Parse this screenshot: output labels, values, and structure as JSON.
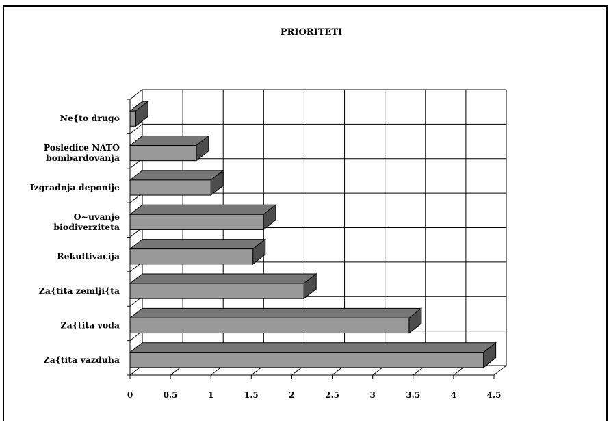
{
  "chart_data": {
    "type": "bar",
    "orientation": "horizontal",
    "style": "3d",
    "title": "PRIORITETI",
    "categories": [
      "Ne{to drugo",
      "Posledice NATO bombardovanja",
      "Izgradnja deponije",
      "O~uvanje biodiverziteta",
      "Rekultivacija",
      "Za{tita zemlji{ta",
      "Za{tita voda",
      "Za{tita vazduha"
    ],
    "category_label_lines": [
      [
        "Ne{to drugo"
      ],
      [
        "Posledice NATO",
        "bombardovanja"
      ],
      [
        "Izgradnja deponije"
      ],
      [
        "O~uvanje",
        "biodiverziteta"
      ],
      [
        "Rekultivacija"
      ],
      [
        "Za{tita zemlji{ta"
      ],
      [
        "Za{tita voda"
      ],
      [
        "Za{tita vazduha"
      ]
    ],
    "values": [
      0.07,
      0.82,
      1.0,
      1.65,
      1.52,
      2.15,
      3.45,
      4.37
    ],
    "xticks": [
      "0",
      "0.5",
      "1",
      "1.5",
      "2",
      "2.5",
      "3",
      "3.5",
      "4",
      "4.5"
    ],
    "xlim": [
      0,
      4.5
    ],
    "grid": true,
    "bar_colors": {
      "front": "#999999",
      "top": "#777777",
      "side": "#4d4d4d"
    }
  }
}
